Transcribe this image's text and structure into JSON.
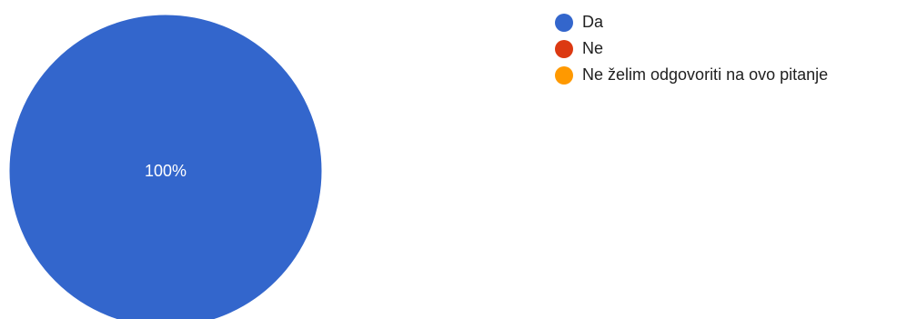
{
  "chart_data": {
    "type": "pie",
    "title": "",
    "legend_position": "right",
    "slices": [
      {
        "label": "Da",
        "value": 100,
        "percent_label": "100%",
        "color": "#3366cc"
      },
      {
        "label": "Ne",
        "value": 0,
        "percent_label": "",
        "color": "#dc3912"
      },
      {
        "label": "Ne želim odgovoriti na ovo pitanje",
        "value": 0,
        "percent_label": "",
        "color": "#ff9900"
      }
    ]
  }
}
